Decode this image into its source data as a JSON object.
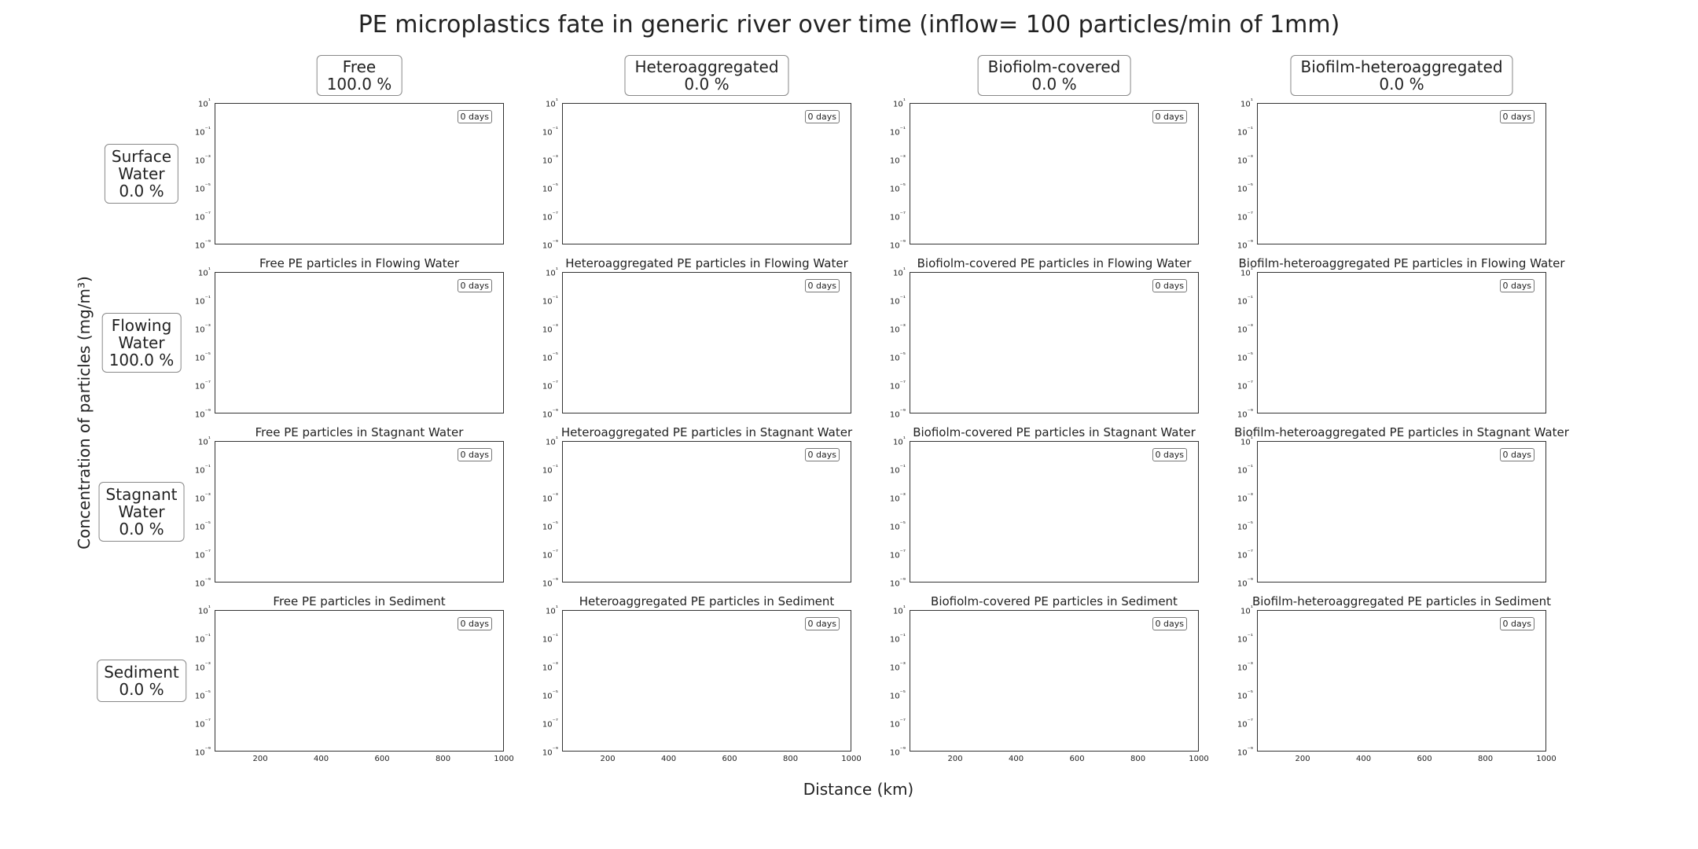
{
  "chart_data": {
    "type": "line",
    "title": "PE microplastics fate in generic river over time (inflow= 100 particles/min of 1mm)",
    "xlabel": "Distance (km)",
    "ylabel": "Concentration of particles (mg/m³)",
    "xlim": [
      50,
      1000
    ],
    "ylim": [
      1e-09,
      10
    ],
    "yscale": "log",
    "grid": false,
    "x_ticks": [
      "200",
      "400",
      "600",
      "800",
      "1000"
    ],
    "y_ticks": [
      "10¹",
      "10⁻¹",
      "10⁻³",
      "10⁻⁵",
      "10⁻⁷",
      "10⁻⁹"
    ],
    "time_label": "0 days",
    "columns": [
      {
        "name": "Free",
        "percent": "100.0 %"
      },
      {
        "name": "Heteroaggregated",
        "percent": "0.0 %"
      },
      {
        "name": "Biofiolm-covered",
        "percent": "0.0 %"
      },
      {
        "name": "Biofilm-heteroaggregated",
        "percent": "0.0 %"
      }
    ],
    "rows": [
      {
        "name_lines": [
          "Surface",
          "Water"
        ],
        "percent": "0.0 %"
      },
      {
        "name_lines": [
          "Flowing",
          "Water"
        ],
        "percent": "100.0 %"
      },
      {
        "name_lines": [
          "Stagnant",
          "Water"
        ],
        "percent": "0.0 %"
      },
      {
        "name_lines": [
          "Sediment"
        ],
        "percent": "0.0 %"
      }
    ],
    "panel_titles": [
      [
        "",
        "",
        "",
        ""
      ],
      [
        "Free PE particles in Flowing Water",
        "Heteroaggregated PE particles in Flowing Water",
        "Biofiolm-covered PE particles in Flowing Water",
        "Biofilm-heteroaggregated PE particles in Flowing Water"
      ],
      [
        "Free PE particles in Stagnant Water",
        "Heteroaggregated PE particles in Stagnant Water",
        "Biofiolm-covered PE particles in Stagnant Water",
        "Biofilm-heteroaggregated PE particles in Stagnant Water"
      ],
      [
        "Free PE particles in Sediment",
        "Heteroaggregated PE particles in Sediment",
        "Biofiolm-covered PE particles in Sediment",
        "Biofilm-heteroaggregated PE particles in Sediment"
      ]
    ],
    "series": []
  }
}
